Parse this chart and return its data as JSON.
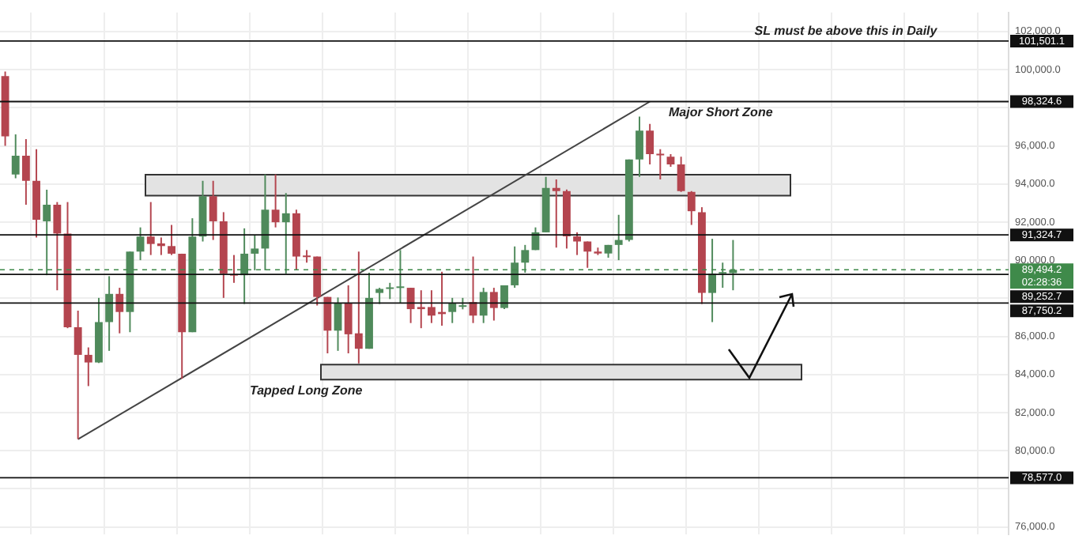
{
  "chart_data": {
    "type": "candlestick",
    "categories": [
      null,
      null,
      null,
      null,
      null,
      null,
      null,
      null,
      null,
      null,
      null,
      null,
      null,
      null,
      null,
      null,
      null,
      null,
      null,
      null,
      null,
      null,
      null,
      null,
      null,
      null,
      null,
      null,
      null,
      null,
      null,
      null,
      null,
      null,
      null,
      null,
      null,
      null,
      null,
      null,
      null,
      null,
      null,
      null,
      null,
      null,
      null,
      null,
      null,
      null,
      null,
      null,
      null,
      null,
      null,
      null,
      null,
      null,
      null,
      null,
      null,
      null,
      null,
      null,
      null,
      null,
      null,
      null,
      null,
      null,
      null,
      null,
      null,
      null,
      null,
      null,
      null,
      null,
      null,
      null,
      null,
      null,
      null,
      null,
      null,
      null,
      null,
      null,
      null,
      null,
      null,
      null,
      null,
      null,
      null,
      null,
      null
    ],
    "ohlc": [
      [
        99660,
        99900,
        96000,
        96500
      ],
      [
        94500,
        96600,
        94300,
        95480
      ],
      [
        95480,
        96350,
        92910,
        94160
      ],
      [
        94160,
        95820,
        91190,
        92120
      ],
      [
        92040,
        93700,
        89210,
        92910
      ],
      [
        92910,
        93050,
        88420,
        91400
      ],
      [
        91400,
        93050,
        86430,
        86480
      ],
      [
        86480,
        87350,
        80610,
        85030
      ],
      [
        85030,
        85420,
        83390,
        84630
      ],
      [
        84630,
        88020,
        84600,
        86750
      ],
      [
        86750,
        89160,
        85240,
        88230
      ],
      [
        88230,
        88550,
        86160,
        87280
      ],
      [
        87280,
        90450,
        86220,
        90450
      ],
      [
        90450,
        91720,
        90000,
        91240
      ],
      [
        91240,
        93050,
        90270,
        90850
      ],
      [
        90880,
        91190,
        90270,
        90740
      ],
      [
        90740,
        91850,
        90270,
        90340
      ],
      [
        90340,
        90340,
        83780,
        86220
      ],
      [
        86220,
        92200,
        86220,
        91240
      ],
      [
        91240,
        94160,
        90980,
        93360
      ],
      [
        93360,
        94160,
        91060,
        92040
      ],
      [
        92040,
        92520,
        88020,
        89290
      ],
      [
        89210,
        90270,
        88810,
        89190
      ],
      [
        89210,
        91670,
        87700,
        90340
      ],
      [
        90340,
        91320,
        89470,
        90610
      ],
      [
        90610,
        94500,
        89470,
        92650
      ],
      [
        92650,
        94500,
        91720,
        91990
      ],
      [
        91990,
        93520,
        89290,
        92460
      ],
      [
        92460,
        92650,
        89470,
        90190
      ],
      [
        90190,
        90530,
        89870,
        90160
      ],
      [
        90190,
        90190,
        87620,
        88070
      ],
      [
        88070,
        88070,
        85110,
        86300
      ],
      [
        86300,
        88040,
        85240,
        87750
      ],
      [
        87750,
        88680,
        85110,
        86110
      ],
      [
        86160,
        90450,
        84580,
        85350
      ],
      [
        85350,
        89340,
        85350,
        88020
      ],
      [
        88280,
        88550,
        87700,
        88490
      ],
      [
        88490,
        88810,
        87960,
        88550
      ],
      [
        88540,
        90530,
        87750,
        88560
      ],
      [
        88550,
        88550,
        86700,
        87430
      ],
      [
        87540,
        88420,
        86430,
        87430
      ],
      [
        87540,
        88420,
        86700,
        87090
      ],
      [
        87280,
        89390,
        86560,
        87170
      ],
      [
        87280,
        88020,
        86700,
        87750
      ],
      [
        87550,
        88020,
        87420,
        87600
      ],
      [
        87800,
        90190,
        86700,
        87090
      ],
      [
        87090,
        88550,
        86700,
        88330
      ],
      [
        88330,
        88550,
        86830,
        87490
      ],
      [
        87490,
        88680,
        87430,
        88680
      ],
      [
        88680,
        90720,
        88550,
        89870
      ],
      [
        89870,
        90800,
        89340,
        90530
      ],
      [
        90530,
        91720,
        90530,
        91460
      ],
      [
        91460,
        94370,
        91460,
        93790
      ],
      [
        93790,
        94240,
        90660,
        93630
      ],
      [
        93630,
        93710,
        90610,
        91250
      ],
      [
        91250,
        91460,
        90270,
        90980
      ],
      [
        90980,
        90980,
        89600,
        90450
      ],
      [
        90450,
        90660,
        90270,
        90350
      ],
      [
        90350,
        90800,
        90130,
        90800
      ],
      [
        90800,
        92380,
        90000,
        91060
      ],
      [
        91060,
        95290,
        90980,
        95290
      ],
      [
        95290,
        97540,
        94370,
        96800
      ],
      [
        96800,
        97150,
        95030,
        95560
      ],
      [
        95520,
        95820,
        94240,
        95500
      ],
      [
        95430,
        95560,
        94900,
        95030
      ],
      [
        95030,
        95430,
        93580,
        93630
      ],
      [
        93580,
        93630,
        91850,
        92570
      ],
      [
        92520,
        92780,
        87700,
        88280
      ],
      [
        88280,
        91120,
        86750,
        89290
      ],
      [
        89290,
        89870,
        88550,
        89320
      ],
      [
        89320,
        91060,
        88420,
        89494.2
      ],
      null,
      null,
      null,
      null,
      null,
      null,
      null,
      null,
      null,
      null,
      null,
      null,
      null,
      null,
      null,
      null,
      null,
      null,
      null,
      null,
      null,
      null,
      null,
      null,
      null,
      null
    ],
    "colors": [
      "#b4454f",
      "#4f8a5b",
      "#b4454f",
      "#b4454f",
      "#4f8a5b",
      "#b4454f",
      "#b4454f",
      "#b4454f",
      "#b4454f",
      "#4f8a5b",
      "#4f8a5b",
      "#b4454f",
      "#4f8a5b",
      "#4f8a5b",
      "#b4454f",
      "#b4454f",
      "#b4454f",
      "#b4454f",
      "#4f8a5b",
      "#4f8a5b",
      "#b4454f",
      "#b4454f",
      "#b4454f",
      "#4f8a5b",
      "#4f8a5b",
      "#4f8a5b",
      "#b4454f",
      "#4f8a5b",
      "#b4454f",
      "#b4454f",
      "#b4454f",
      "#b4454f",
      "#4f8a5b",
      "#b4454f",
      "#b4454f",
      "#4f8a5b",
      "#4f8a5b",
      "#4f8a5b",
      "#4f8a5b",
      "#b4454f",
      "#b4454f",
      "#b4454f",
      "#b4454f",
      "#4f8a5b",
      "#4f8a5b",
      "#b4454f",
      "#4f8a5b",
      "#b4454f",
      "#4f8a5b",
      "#4f8a5b",
      "#4f8a5b",
      "#4f8a5b",
      "#4f8a5b",
      "#b4454f",
      "#b4454f",
      "#b4454f",
      "#b4454f",
      "#b4454f",
      "#4f8a5b",
      "#4f8a5b",
      "#4f8a5b",
      "#4f8a5b",
      "#b4454f",
      "#b4454f",
      "#b4454f",
      "#b4454f",
      "#b4454f",
      "#b4454f",
      "#4f8a5b",
      "#4f8a5b",
      "#4f8a5b",
      null,
      null,
      null,
      null,
      null,
      null,
      null,
      null,
      null,
      null,
      null,
      null,
      null,
      null,
      null,
      null,
      null,
      null,
      null,
      null,
      null,
      null,
      null,
      null,
      null,
      null
    ],
    "series": [
      {
        "type": "line",
        "color": "#444444",
        "values": [
          null,
          null,
          null,
          null,
          null,
          null,
          null,
          80600,
          null,
          null,
          null,
          null,
          null,
          null,
          null,
          null,
          null,
          null,
          null,
          null,
          null,
          null,
          null,
          null,
          null,
          null,
          null,
          null,
          null,
          null,
          null,
          null,
          null,
          null,
          null,
          null,
          null,
          null,
          null,
          null,
          null,
          null,
          null,
          null,
          null,
          null,
          null,
          null,
          null,
          null,
          null,
          null,
          null,
          null,
          null,
          null,
          null,
          null,
          null,
          null,
          null,
          null,
          98324.6,
          null,
          null,
          null,
          null,
          null,
          null,
          null,
          null,
          null,
          null,
          null,
          null,
          null,
          null,
          null,
          null,
          null,
          null,
          null,
          null,
          null,
          null,
          null,
          null,
          null,
          null,
          null,
          null,
          null,
          null,
          null,
          null,
          null,
          null
        ]
      }
    ],
    "ylim": [
      75600,
      103000
    ],
    "yticks": [
      {
        "value": 76000,
        "label": "76,000.0"
      },
      {
        "value": 78000,
        "label": null
      },
      {
        "value": 80000,
        "label": "80,000.0"
      },
      {
        "value": 82000,
        "label": "82,000.0"
      },
      {
        "value": 84000,
        "label": "84,000.0"
      },
      {
        "value": 86000,
        "label": "86,000.0"
      },
      {
        "value": 88000,
        "label": null
      },
      {
        "value": 90000,
        "label": "90,000.0"
      },
      {
        "value": 92000,
        "label": "92,000.0"
      },
      {
        "value": 94000,
        "label": "94,000.0"
      },
      {
        "value": 96000,
        "label": "96,000.0"
      },
      {
        "value": 98000,
        "label": null
      },
      {
        "value": 100000,
        "label": "100,000.0"
      },
      {
        "value": 102000,
        "label": "102,000.0"
      }
    ],
    "ref_lines": [
      {
        "axis": "y",
        "value": 101501.1,
        "label": "101,501.1",
        "color": "#111111"
      },
      {
        "axis": "y",
        "value": 98324.6,
        "label": "98,324.6",
        "color": "#111111"
      },
      {
        "axis": "y",
        "value": 91324.7,
        "label": "91,324.7",
        "color": "#111111"
      },
      {
        "axis": "y",
        "value": 89494.2,
        "label": "89,494.2",
        "color": "#3f8a4a",
        "line_style": "dashed"
      },
      {
        "axis": "y",
        "value": 89252.7,
        "label": "89,252.7",
        "color": "#111111"
      },
      {
        "axis": "y",
        "value": 87750.2,
        "label": "87,750.2",
        "color": "#111111"
      },
      {
        "axis": "y",
        "value": 78577.0,
        "label": "78,577.0",
        "color": "#111111"
      }
    ],
    "annotations": [
      "SL must be above this in Daily",
      "Major Short Zone",
      "02:28:36"
    ],
    "bands": [
      {
        "axis": "y",
        "from": 93390,
        "to": 94490,
        "color": "#e3e3e3"
      },
      {
        "axis": "y",
        "from": 83730,
        "to": 84520,
        "label": "Tapped Long Zone",
        "color": "#e3e3e3"
      }
    ],
    "grid": true,
    "tick_labels": "y",
    "legend": false
  }
}
